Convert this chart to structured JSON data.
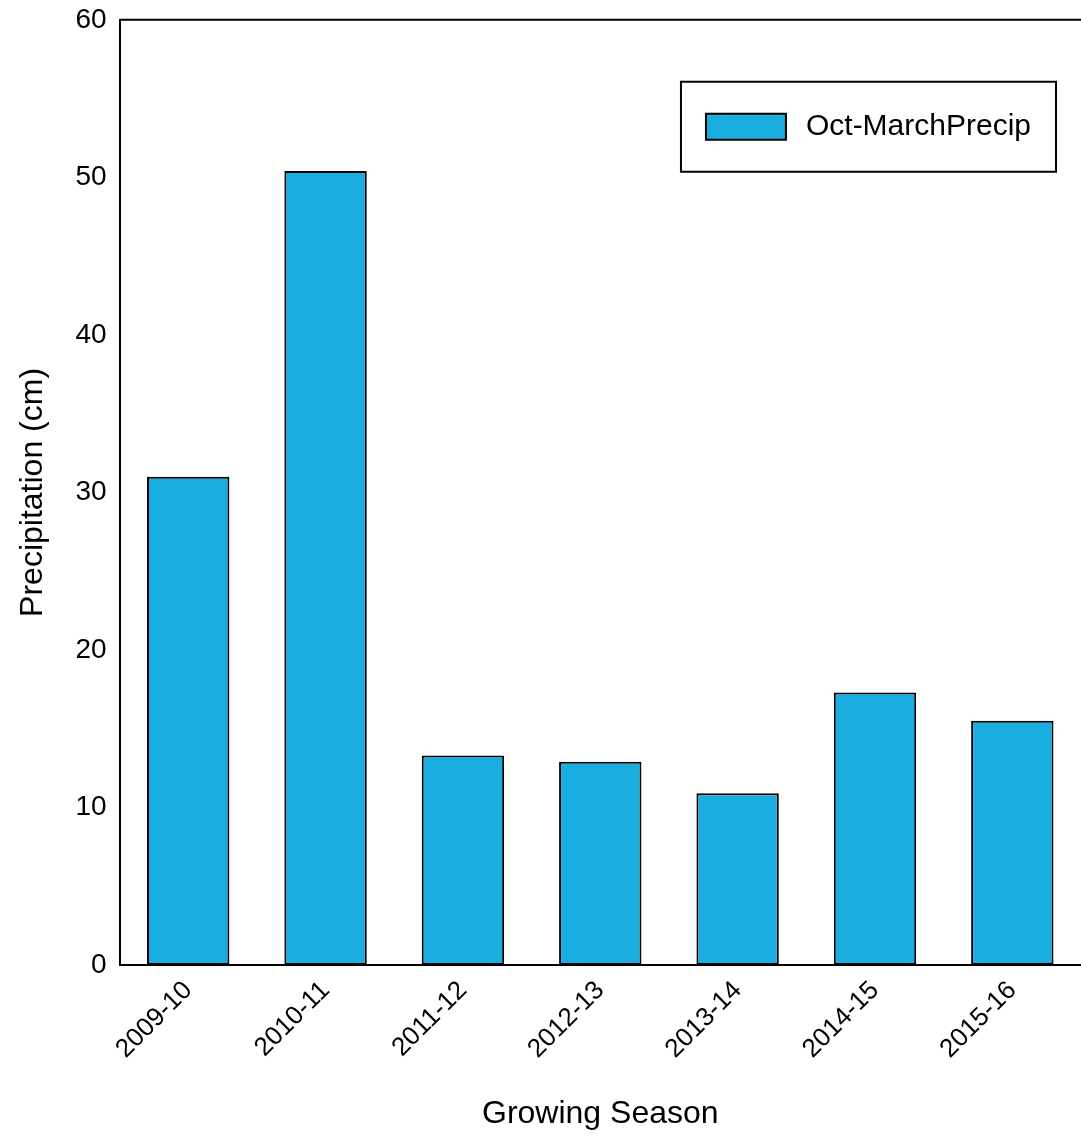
{
  "chart_data": {
    "type": "bar",
    "xlabel": "Growing Season",
    "ylabel": "Precipitation (cm)",
    "categories": [
      "2009-10",
      "2010-11",
      "2011-12",
      "2012-13",
      "2013-14",
      "2014-15",
      "2015-16"
    ],
    "series": [
      {
        "name": "Oct-MarchPrecip",
        "color": "#1aaee0",
        "values": [
          31.0,
          50.4,
          13.3,
          12.9,
          10.9,
          17.3,
          15.5
        ]
      }
    ],
    "ylim": [
      0,
      60
    ],
    "yticks": [
      0,
      10,
      20,
      30,
      40,
      50,
      60
    ],
    "grid": false,
    "legend": "top right"
  }
}
